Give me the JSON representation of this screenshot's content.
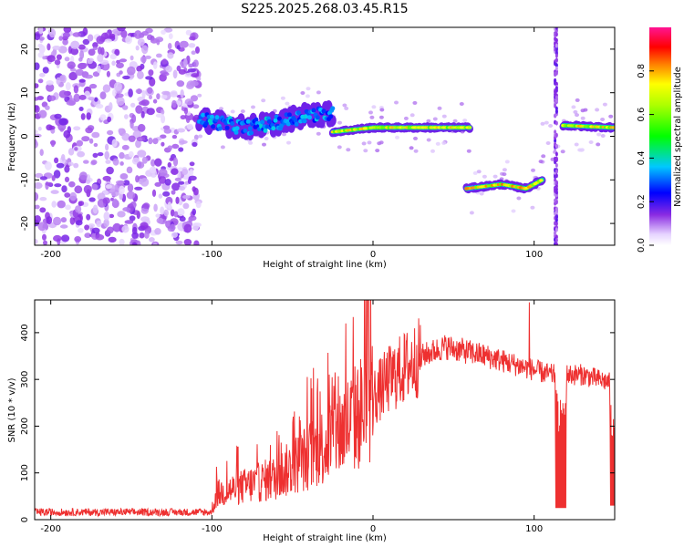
{
  "title": "S225.2025.268.03.45.R15",
  "chart_data": [
    {
      "type": "heatmap",
      "xlabel": "Height of straight line (km)",
      "ylabel": "Frequency (Hz)",
      "xlim": [
        -210,
        150
      ],
      "ylim": [
        -25,
        25
      ],
      "xticks": [
        -200,
        -100,
        0,
        100
      ],
      "yticks": [
        -20,
        -10,
        0,
        10,
        20
      ],
      "colorbar": {
        "label": "Normalized spectral amplitude",
        "range": [
          0,
          1
        ],
        "ticks": [
          0.0,
          0.2,
          0.4,
          0.6,
          0.8
        ],
        "tick_labels": [
          "0.0",
          "0.2",
          "0.4",
          "0.6",
          "0.8"
        ]
      },
      "segments": [
        {
          "x": [
            -210,
            -108
          ],
          "desc": "noise",
          "f_center": 0,
          "f_spread": 24
        },
        {
          "x": [
            -108,
            -25
          ],
          "f_points": [
            [
              -108,
              4
            ],
            [
              -80,
              2
            ],
            [
              -60,
              3
            ],
            [
              -40,
              5
            ],
            [
              -25,
              5
            ]
          ],
          "amp": 0.35
        },
        {
          "x": [
            -25,
            60
          ],
          "f_points": [
            [
              -25,
              1
            ],
            [
              0,
              2
            ],
            [
              30,
              2
            ],
            [
              60,
              2
            ]
          ],
          "amp": 0.8
        },
        {
          "x": [
            58,
            105
          ],
          "f_points": [
            [
              58,
              -12
            ],
            [
              80,
              -11
            ],
            [
              95,
              -12
            ],
            [
              105,
              -10
            ]
          ],
          "amp": 0.85
        },
        {
          "x": [
            118,
            150
          ],
          "f_points": [
            [
              118,
              2.5
            ],
            [
              150,
              2
            ]
          ],
          "amp": 0.8
        }
      ],
      "vertical_streaks": [
        113,
        114
      ]
    },
    {
      "type": "line",
      "xlabel": "Height of straight line (km)",
      "ylabel": "SNR (10 * v/v)",
      "xlim": [
        -210,
        150
      ],
      "ylim": [
        0,
        470
      ],
      "xticks": [
        -200,
        -100,
        0,
        100
      ],
      "yticks": [
        0,
        100,
        200,
        300,
        400
      ],
      "color": "#ee3030",
      "envelope": [
        {
          "x": -210,
          "y": 15
        },
        {
          "x": -100,
          "y": 15
        },
        {
          "x": -97,
          "y": 55
        },
        {
          "x": -60,
          "y": 90
        },
        {
          "x": -30,
          "y": 160
        },
        {
          "x": -10,
          "y": 220
        },
        {
          "x": 10,
          "y": 300
        },
        {
          "x": 30,
          "y": 350
        },
        {
          "x": 45,
          "y": 370
        },
        {
          "x": 70,
          "y": 350
        },
        {
          "x": 90,
          "y": 330
        },
        {
          "x": 110,
          "y": 310
        },
        {
          "x": 130,
          "y": 310
        },
        {
          "x": 150,
          "y": 290
        }
      ],
      "dropouts": [
        [
          113,
          120,
          25
        ],
        [
          147,
          150,
          30
        ]
      ],
      "peak": {
        "x": 97,
        "y": 465
      }
    }
  ]
}
